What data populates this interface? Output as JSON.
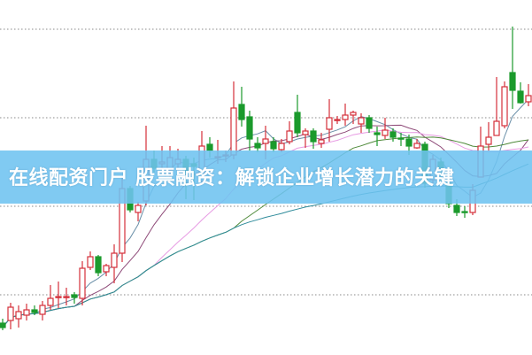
{
  "title": "在线配资门户 股票融资：解锁企业增长潜力的关键",
  "colors": {
    "up": "#d42f3a",
    "down": "#1b9a2c",
    "grid": "#a0a0a0",
    "banner": "#6ec3f0",
    "ma": [
      "#6a8fa8",
      "#8e4a78",
      "#e79be3",
      "#4f8a3a",
      "#2e8b9a"
    ]
  },
  "chart_data": {
    "type": "candlestick",
    "title": "",
    "xlabel": "",
    "ylabel": "",
    "ylim": [
      0.32,
      4.33
    ],
    "grid": true,
    "grid_levels": [
      1,
      2,
      3,
      4
    ],
    "candles": [
      [
        0.68,
        0.63,
        0.73,
        0.6
      ],
      [
        0.71,
        0.86,
        0.91,
        0.61
      ],
      [
        0.73,
        0.81,
        0.88,
        0.63
      ],
      [
        0.77,
        0.83,
        0.9,
        0.71
      ],
      [
        0.83,
        0.8,
        0.88,
        0.77
      ],
      [
        0.78,
        0.88,
        0.93,
        0.71
      ],
      [
        0.88,
        0.96,
        1.11,
        0.83
      ],
      [
        0.97,
        0.98,
        1.15,
        0.85
      ],
      [
        0.97,
        0.98,
        1.08,
        0.88
      ],
      [
        1.0,
        0.97,
        1.03,
        0.9
      ],
      [
        0.96,
        1.3,
        1.38,
        0.88
      ],
      [
        1.31,
        1.43,
        1.49,
        1.28
      ],
      [
        1.43,
        1.25,
        1.45,
        1.21
      ],
      [
        1.26,
        1.33,
        1.35,
        1.21
      ],
      [
        1.31,
        1.47,
        1.57,
        1.13
      ],
      [
        1.47,
        2.2,
        2.33,
        1.37
      ],
      [
        2.2,
        1.96,
        2.23,
        1.93
      ],
      [
        1.93,
        2.01,
        2.05,
        1.83
      ],
      [
        2.06,
        2.53,
        2.91,
        2.01
      ],
      [
        2.53,
        2.43,
        2.63,
        2.38
      ],
      [
        2.48,
        2.5,
        2.68,
        2.38
      ],
      [
        2.41,
        2.55,
        2.68,
        2.33
      ],
      [
        2.48,
        2.53,
        2.65,
        2.33
      ],
      [
        2.53,
        2.38,
        2.57,
        2.08
      ],
      [
        2.48,
        2.45,
        2.55,
        2.07
      ],
      [
        2.28,
        2.68,
        2.85,
        2.28
      ],
      [
        2.7,
        2.63,
        2.78,
        2.55
      ],
      [
        2.55,
        2.56,
        2.75,
        2.48
      ],
      [
        2.57,
        2.58,
        2.63,
        2.5
      ],
      [
        2.58,
        3.11,
        3.41,
        2.53
      ],
      [
        3.15,
        2.98,
        3.35,
        2.9
      ],
      [
        3.01,
        2.76,
        3.08,
        2.63
      ],
      [
        2.71,
        2.66,
        2.78,
        2.61
      ],
      [
        2.71,
        2.76,
        2.91,
        2.53
      ],
      [
        2.73,
        2.65,
        2.78,
        2.61
      ],
      [
        2.64,
        2.71,
        2.76,
        2.61
      ],
      [
        2.73,
        2.85,
        2.96,
        2.7
      ],
      [
        3.06,
        2.83,
        3.26,
        2.78
      ],
      [
        2.81,
        2.85,
        2.88,
        2.66
      ],
      [
        2.85,
        2.73,
        2.88,
        2.65
      ],
      [
        2.71,
        2.75,
        2.83,
        2.66
      ],
      [
        2.87,
        3.0,
        3.21,
        2.73
      ],
      [
        2.97,
        2.98,
        3.02,
        2.93
      ],
      [
        2.98,
        3.03,
        3.16,
        2.91
      ],
      [
        3.03,
        3.06,
        3.08,
        2.93
      ],
      [
        2.93,
        3.0,
        3.05,
        2.83
      ],
      [
        3.0,
        2.88,
        3.03,
        2.83
      ],
      [
        2.83,
        2.81,
        2.9,
        2.68
      ],
      [
        2.8,
        2.86,
        3.0,
        2.76
      ],
      [
        2.84,
        2.78,
        2.88,
        2.73
      ],
      [
        2.77,
        2.76,
        2.83,
        2.68
      ],
      [
        2.76,
        2.68,
        2.81,
        2.58
      ],
      [
        2.66,
        2.71,
        2.76,
        2.65
      ],
      [
        2.7,
        2.26,
        2.73,
        2.21
      ],
      [
        2.3,
        2.53,
        2.58,
        2.23
      ],
      [
        2.5,
        2.43,
        2.55,
        2.28
      ],
      [
        2.26,
        2.03,
        2.28,
        1.98
      ],
      [
        2.01,
        1.93,
        2.08,
        1.89
      ],
      [
        1.94,
        1.93,
        2.0,
        1.87
      ],
      [
        1.93,
        2.18,
        2.25,
        1.9
      ],
      [
        2.33,
        2.68,
        2.9,
        2.33
      ],
      [
        2.7,
        2.78,
        2.95,
        2.63
      ],
      [
        2.8,
        2.96,
        3.46,
        2.8
      ],
      [
        2.91,
        3.35,
        3.41,
        2.88
      ],
      [
        3.51,
        3.31,
        4.03,
        3.1
      ],
      [
        3.3,
        3.17,
        3.4,
        3.16
      ],
      [
        3.18,
        3.25,
        3.38,
        3.13
      ]
    ],
    "candle_fields": [
      "open",
      "close",
      "high",
      "low"
    ],
    "moving_averages": [
      5,
      10,
      20,
      30,
      60
    ]
  }
}
